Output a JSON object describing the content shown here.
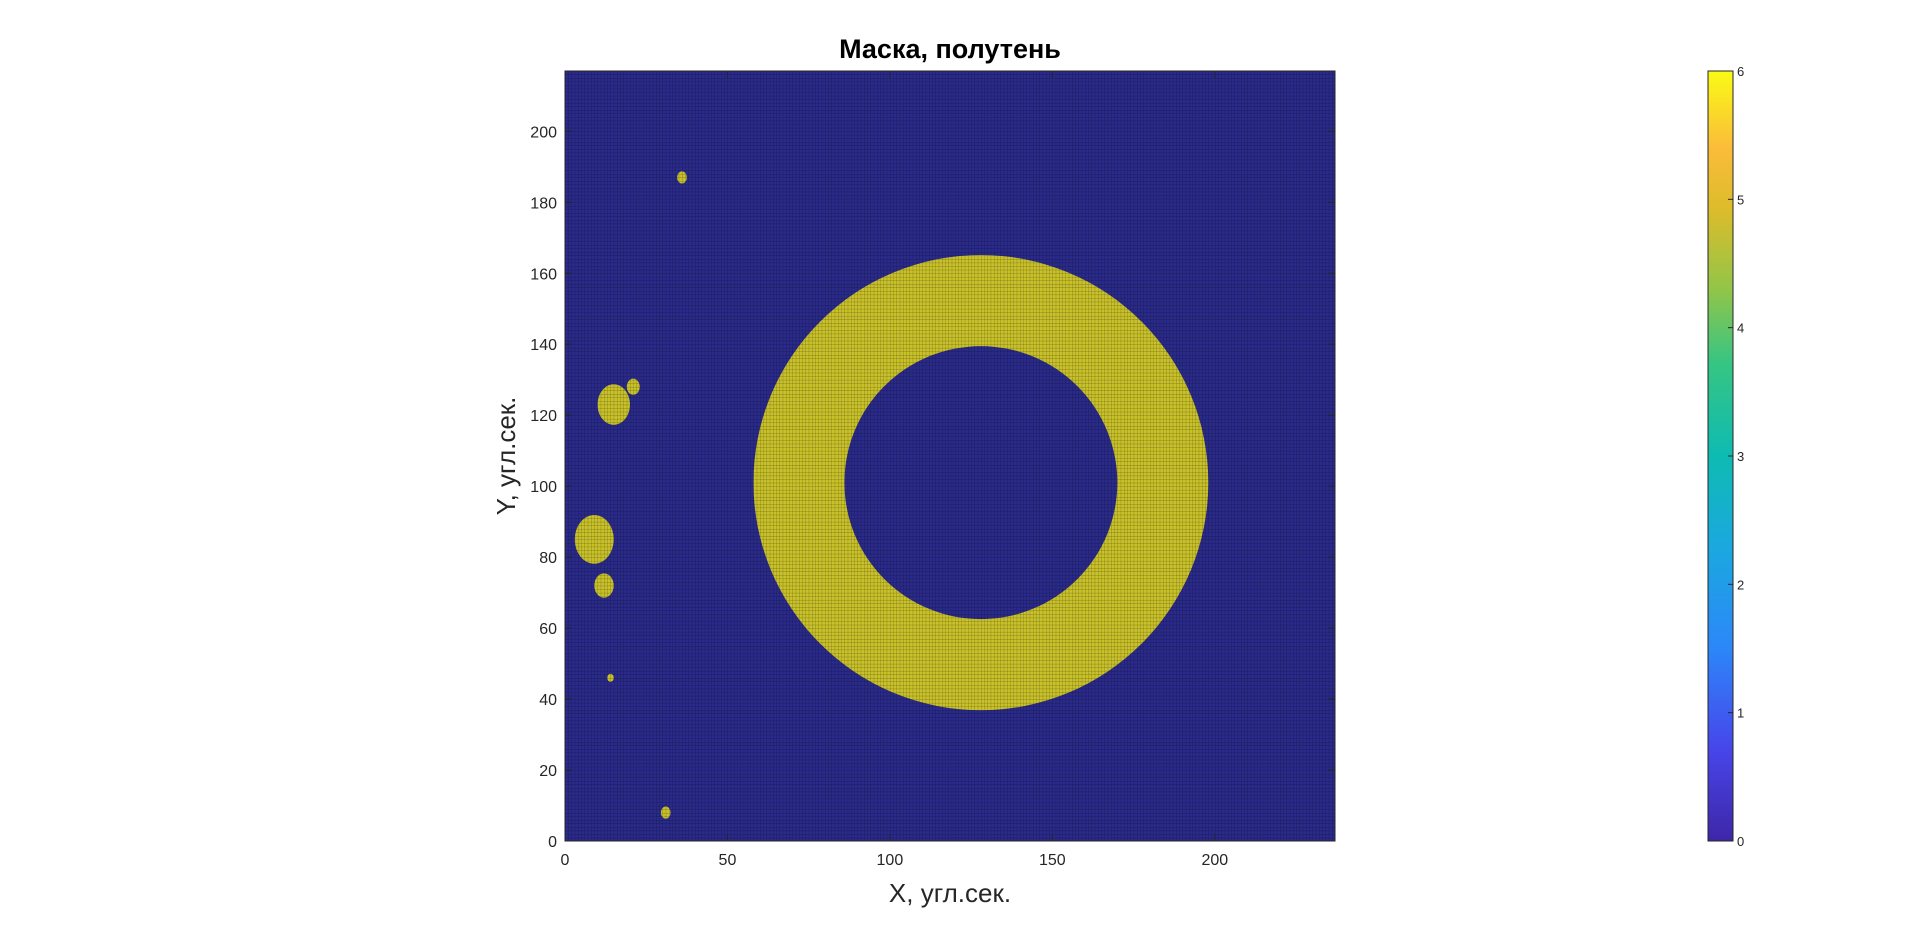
{
  "chart_data": {
    "type": "heatmap",
    "title": "Маска, полутень",
    "xlabel": "X, угл.сек.",
    "ylabel": "Y, угл.сек.",
    "xlim": [
      0,
      237
    ],
    "ylim": [
      0,
      217
    ],
    "xticks": [
      0,
      50,
      100,
      150,
      200
    ],
    "yticks": [
      0,
      20,
      40,
      60,
      80,
      100,
      120,
      140,
      160,
      180,
      200
    ],
    "grid": false,
    "colorbar": {
      "limits": [
        0,
        6
      ],
      "ticks": [
        0,
        1,
        2,
        3,
        4,
        5,
        6
      ],
      "colormap": "parula"
    },
    "colors": {
      "background_value_color": "#2a2a8a",
      "mask_value_color": "#c9c12a",
      "cell_edge": "#000000"
    },
    "values_present": [
      0,
      4.7
    ],
    "mask_shape": {
      "ring": {
        "center": [
          128,
          101
        ],
        "inner_radius": 42,
        "outer_radius": 70
      },
      "blobs": [
        {
          "center": [
            9,
            85
          ],
          "radius": 6
        },
        {
          "center": [
            12,
            72
          ],
          "radius": 3
        },
        {
          "center": [
            15,
            123
          ],
          "radius": 5
        },
        {
          "center": [
            21,
            128
          ],
          "radius": 2
        },
        {
          "center": [
            36,
            187
          ],
          "radius": 1.5
        },
        {
          "center": [
            31,
            8
          ],
          "radius": 1.5
        },
        {
          "center": [
            14,
            46
          ],
          "radius": 1
        }
      ]
    }
  }
}
